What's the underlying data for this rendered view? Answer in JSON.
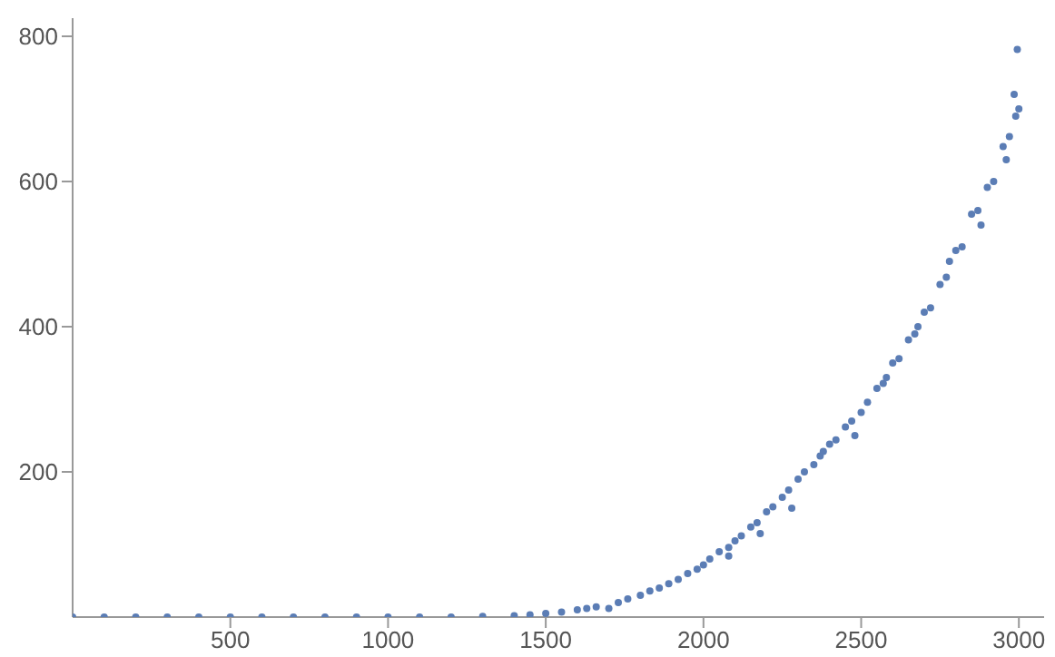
{
  "chart_data": {
    "type": "scatter",
    "color": "#5b7db5",
    "marker": "circle",
    "xlim": [
      0,
      3080
    ],
    "ylim": [
      0,
      825
    ],
    "xticks": [
      500,
      1000,
      1500,
      2000,
      2500,
      3000
    ],
    "yticks": [
      200,
      400,
      600,
      800
    ],
    "grid": false,
    "x": [
      0,
      100,
      200,
      300,
      400,
      500,
      600,
      700,
      800,
      900,
      1000,
      1100,
      1200,
      1300,
      1400,
      1450,
      1500,
      1550,
      1600,
      1630,
      1660,
      1700,
      1730,
      1760,
      1800,
      1830,
      1860,
      1890,
      1920,
      1950,
      1980,
      2000,
      2020,
      2050,
      2080,
      2100,
      2120,
      2150,
      2170,
      2200,
      2220,
      2250,
      2270,
      2300,
      2320,
      2350,
      2370,
      2400,
      2420,
      2450,
      2470,
      2500,
      2520,
      2550,
      2570,
      2600,
      2620,
      2650,
      2670,
      2700,
      2720,
      2750,
      2770,
      2800,
      2820,
      2850,
      2870,
      2900,
      2920,
      2950,
      2970,
      2990,
      3000,
      2995,
      2985,
      2960,
      2880,
      2780,
      2680,
      2580,
      2480,
      2380,
      2280,
      2180,
      2080
    ],
    "values": [
      0,
      0,
      0,
      0,
      0,
      0,
      0,
      0,
      0,
      0,
      0,
      0,
      0,
      1,
      2,
      3,
      5,
      7,
      10,
      12,
      14,
      12,
      20,
      25,
      30,
      36,
      40,
      46,
      52,
      60,
      66,
      72,
      80,
      90,
      96,
      105,
      112,
      124,
      130,
      145,
      152,
      165,
      175,
      190,
      200,
      210,
      222,
      238,
      244,
      262,
      270,
      282,
      296,
      315,
      322,
      350,
      356,
      382,
      390,
      420,
      426,
      458,
      468,
      505,
      510,
      555,
      560,
      592,
      600,
      648,
      662,
      690,
      700,
      782,
      720,
      630,
      540,
      490,
      400,
      330,
      250,
      228,
      150,
      115,
      84
    ]
  }
}
